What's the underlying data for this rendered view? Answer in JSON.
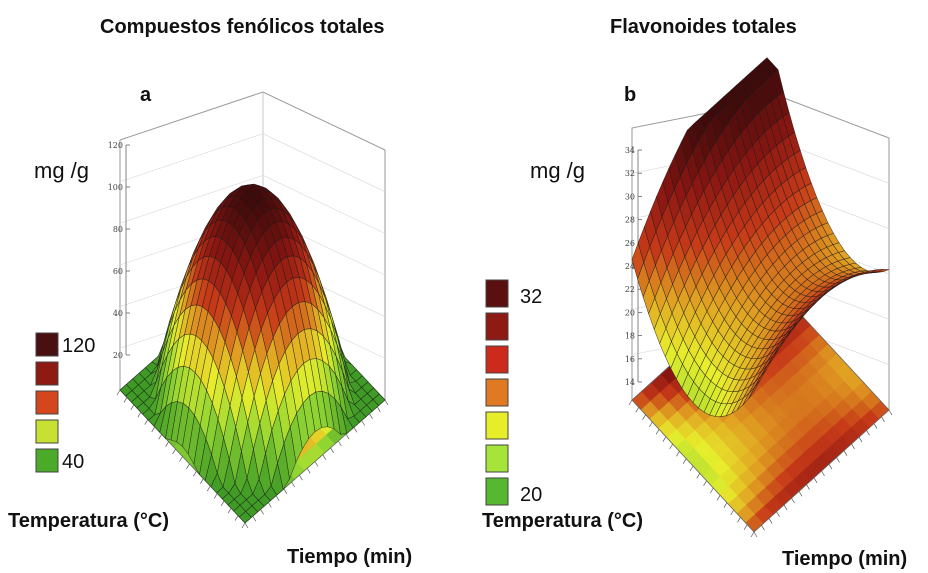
{
  "chart_data": [
    {
      "type": "surface",
      "panel_letter": "a",
      "title": "Compuestos fenólicos totales",
      "zlabel": "mg /g",
      "xlabel": "Tiempo (min)",
      "ylabel": "Temperatura (°C)",
      "z_ticks": [
        "20",
        "40",
        "60",
        "80",
        "100",
        "120"
      ],
      "zlim": [
        20,
        120
      ],
      "legend_labels": [
        "120",
        "",
        "",
        "",
        "40"
      ],
      "legend_colors": [
        "#4a0f10",
        "#8e1a14",
        "#d4471c",
        "#c8e034",
        "#4caa2a"
      ],
      "surface_shape": "dome"
    },
    {
      "type": "surface",
      "panel_letter": "b",
      "title": "Flavonoides totales",
      "zlabel": "mg /g",
      "xlabel": "Tiempo (min)",
      "ylabel": "Temperatura (°C)",
      "z_ticks": [
        "14",
        "16",
        "18",
        "20",
        "22",
        "24",
        "26",
        "28",
        "30",
        "32",
        "34"
      ],
      "zlim": [
        14,
        34
      ],
      "legend_labels": [
        "32",
        "",
        "",
        "",
        "",
        "",
        "20"
      ],
      "legend_colors": [
        "#5a1010",
        "#8e1a14",
        "#cc2a1a",
        "#e07a22",
        "#e6ee2a",
        "#a6e43a",
        "#56b82e"
      ],
      "surface_shape": "saddle"
    }
  ]
}
